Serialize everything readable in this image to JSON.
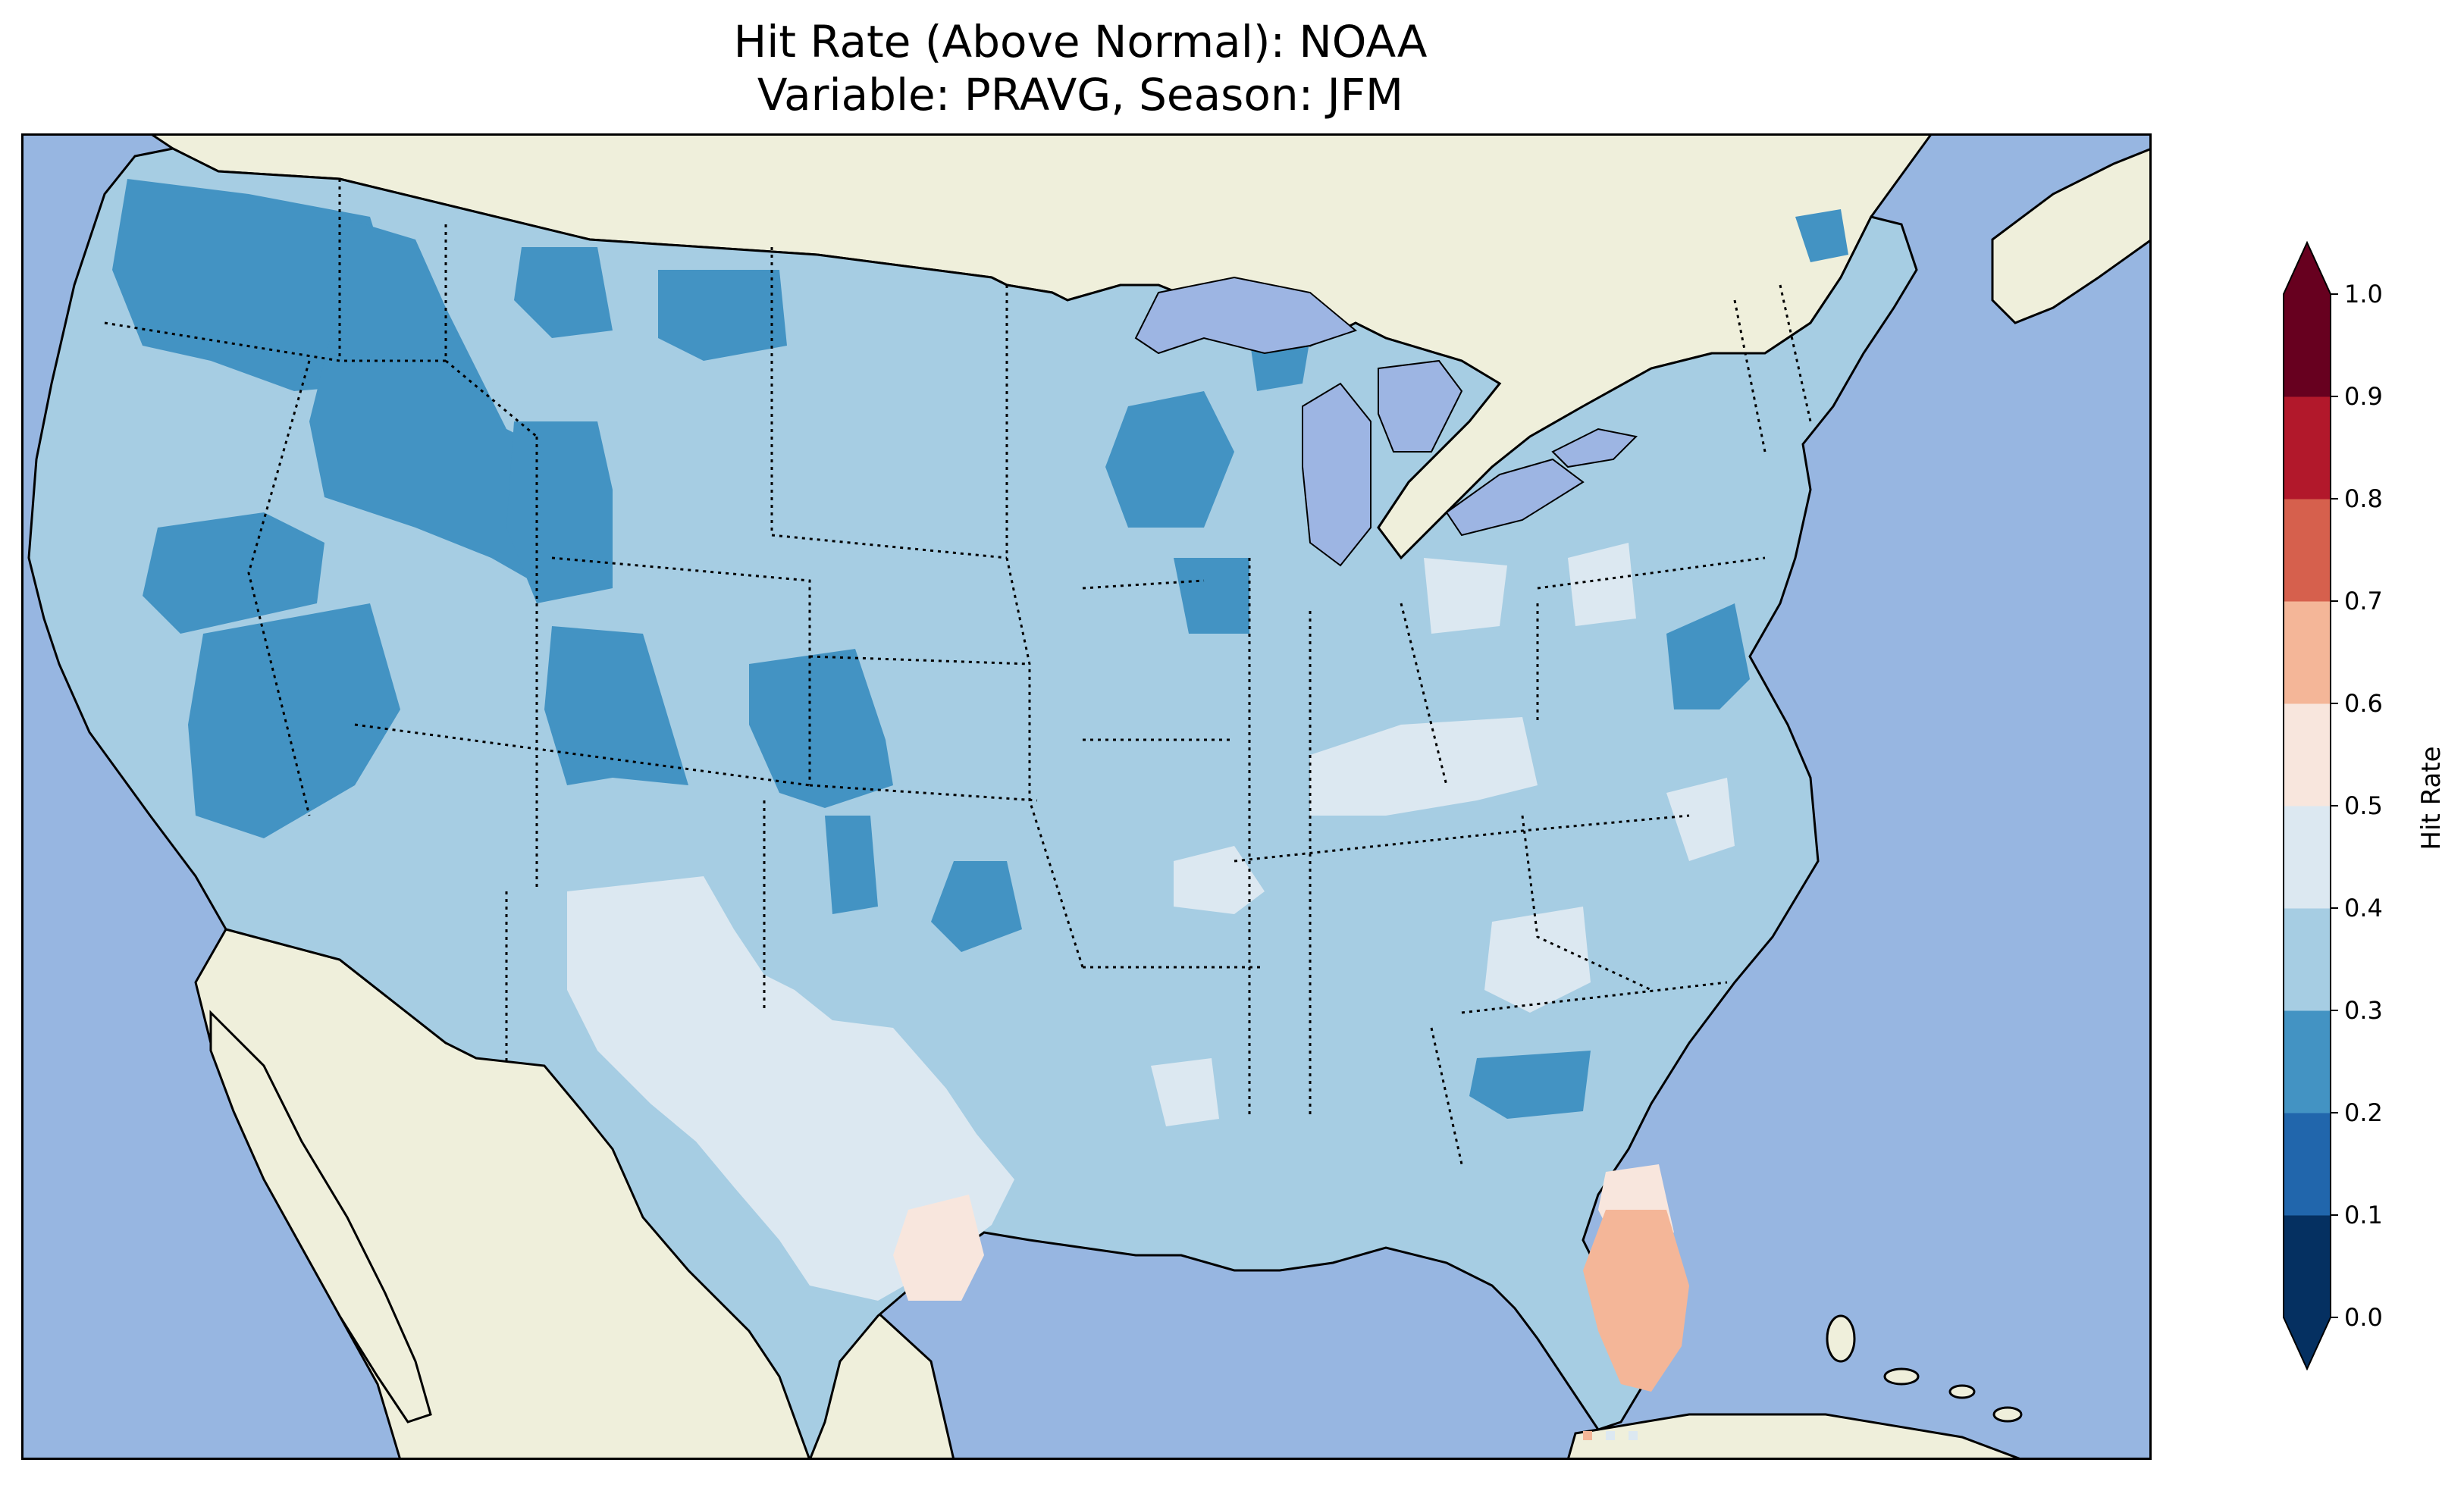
{
  "title": {
    "line1": "Hit Rate (Above Normal): NOAA",
    "line2": "Variable: PRAVG, Season: JFM"
  },
  "colors": {
    "ocean": "#97b6e1",
    "land": "#efefdb",
    "lakes": "#9db5e3"
  },
  "colorbar": {
    "label": "Hit Rate",
    "ticks": [
      "0.0",
      "0.1",
      "0.2",
      "0.3",
      "0.4",
      "0.5",
      "0.6",
      "0.7",
      "0.8",
      "0.9",
      "1.0"
    ],
    "levels": [
      {
        "range": [
          0.0,
          0.1
        ],
        "color": "#053061"
      },
      {
        "range": [
          0.1,
          0.2
        ],
        "color": "#2166ac"
      },
      {
        "range": [
          0.2,
          0.3
        ],
        "color": "#4393c3"
      },
      {
        "range": [
          0.3,
          0.4
        ],
        "color": "#a6cde3"
      },
      {
        "range": [
          0.4,
          0.5
        ],
        "color": "#dce8f1"
      },
      {
        "range": [
          0.5,
          0.6
        ],
        "color": "#f8e6dd"
      },
      {
        "range": [
          0.6,
          0.7
        ],
        "color": "#f4b698"
      },
      {
        "range": [
          0.7,
          0.8
        ],
        "color": "#d6604d"
      },
      {
        "range": [
          0.8,
          0.9
        ],
        "color": "#b2182b"
      },
      {
        "range": [
          0.9,
          1.0
        ],
        "color": "#67001f"
      }
    ],
    "extend": "both"
  },
  "map_data": {
    "region": "Contiguous United States",
    "dominant_value_range": [
      0.3,
      0.4
    ],
    "regions": [
      {
        "area": "Pacific Northwest / Washington–Oregon",
        "value_range": [
          0.2,
          0.3
        ]
      },
      {
        "area": "Idaho–Montana–Wyoming uplands",
        "value_range": [
          0.2,
          0.3
        ]
      },
      {
        "area": "Nevada",
        "value_range": [
          0.2,
          0.3
        ]
      },
      {
        "area": "Colorado–Utah–Wyoming",
        "value_range": [
          0.2,
          0.3
        ]
      },
      {
        "area": "Wisconsin",
        "value_range": [
          0.2,
          0.3
        ]
      },
      {
        "area": "Oklahoma",
        "value_range": [
          0.2,
          0.3
        ]
      },
      {
        "area": "Georgia–Florida panhandle",
        "value_range": [
          0.2,
          0.3
        ]
      },
      {
        "area": "New Mexico–West Texas",
        "value_range": [
          0.4,
          0.5
        ]
      },
      {
        "area": "Kentucky–Ohio Valley",
        "value_range": [
          0.4,
          0.5
        ]
      },
      {
        "area": "Georgia–Alabama",
        "value_range": [
          0.4,
          0.5
        ]
      },
      {
        "area": "South Texas",
        "value_range": [
          0.5,
          0.6
        ]
      },
      {
        "area": "South Florida",
        "value_range": [
          0.6,
          0.7
        ]
      }
    ]
  }
}
